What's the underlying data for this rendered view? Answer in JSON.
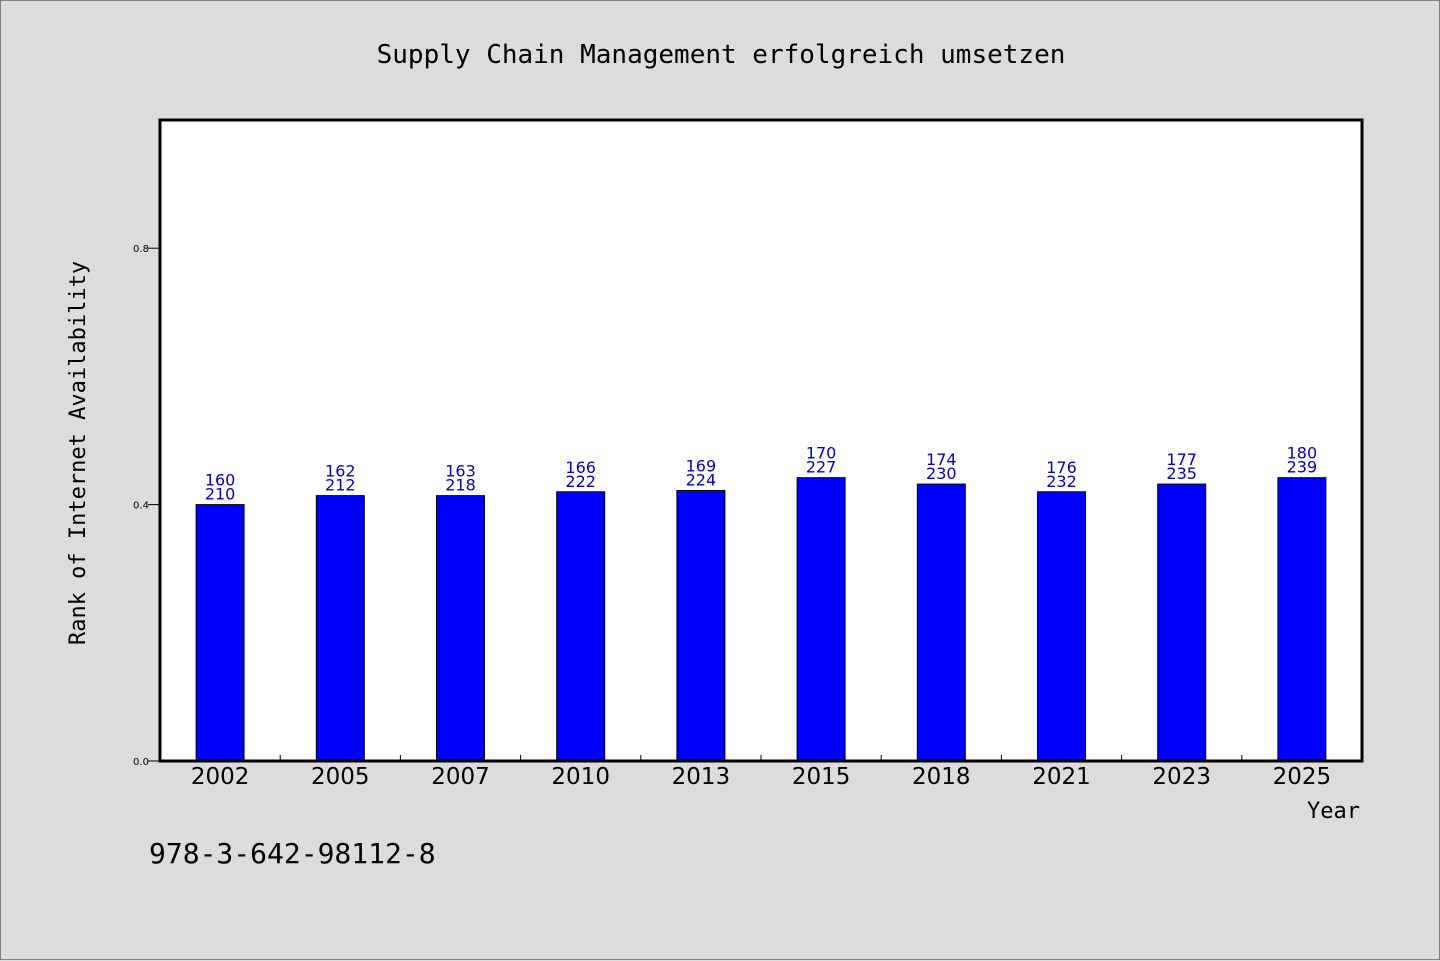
{
  "chart_data": {
    "type": "bar",
    "title": "Supply Chain Management erfolgreich umsetzen",
    "xlabel": "Year",
    "ylabel": "Rank of Internet Availability",
    "categories": [
      "2002",
      "2005",
      "2007",
      "2010",
      "2013",
      "2015",
      "2018",
      "2021",
      "2023",
      "2025"
    ],
    "values": [
      0.4,
      0.414,
      0.414,
      0.42,
      0.422,
      0.442,
      0.432,
      0.42,
      0.432,
      0.442
    ],
    "data_labels_top": [
      "160",
      "162",
      "163",
      "166",
      "169",
      "170",
      "174",
      "176",
      "177",
      "180"
    ],
    "data_labels_bottom": [
      "210",
      "212",
      "218",
      "222",
      "224",
      "227",
      "230",
      "232",
      "235",
      "239"
    ],
    "ylim": [
      0,
      1.0
    ],
    "yticks": [
      0.0,
      0.4,
      0.8
    ],
    "ytick_labels": [
      "0.0",
      "0.4",
      "0.8"
    ],
    "grid": false,
    "bar_color": "#0000ff",
    "label_color": "#0000cc",
    "plot_background": "#ffffff",
    "figure_background": "#dcdcdc"
  },
  "footnote": "978-3-642-98112-8"
}
